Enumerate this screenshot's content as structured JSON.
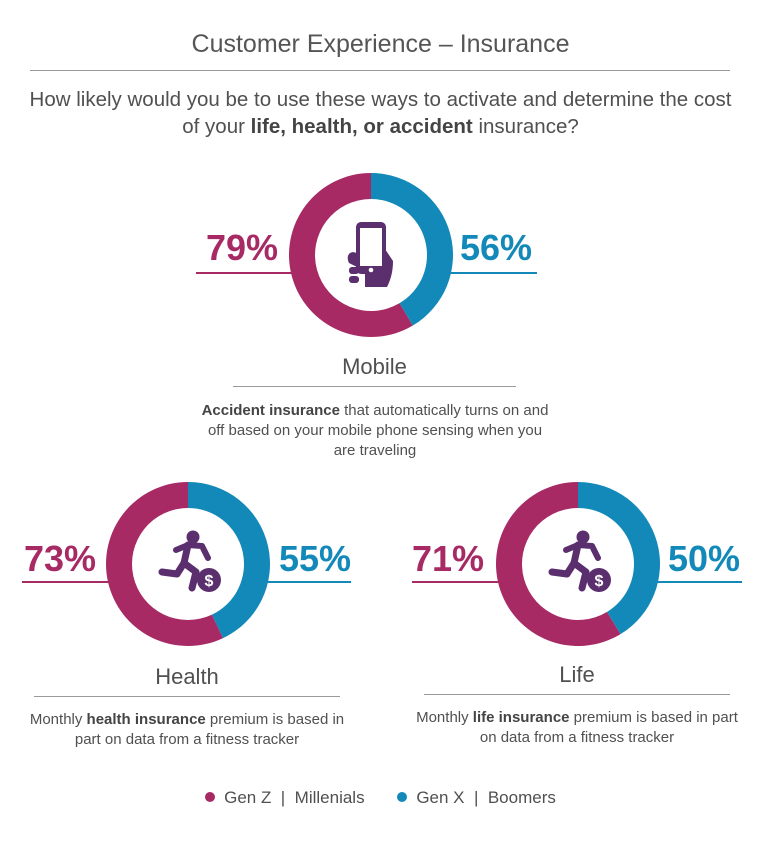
{
  "header": {
    "title": "Customer Experience – Insurance",
    "question_part1": "How likely would you be to use these ways to activate and determine the cost of your ",
    "question_bold": "life, health, or accident",
    "question_part2": " insurance?"
  },
  "colors": {
    "gen_z_millenials": "#a72a65",
    "gen_x_boomers": "#1289b8",
    "icon": "#5b2e6e"
  },
  "chart_data": [
    {
      "type": "pie",
      "name": "Mobile",
      "icon": "smartphone-in-hand-icon",
      "series": [
        {
          "name": "Gen Z | Millenials",
          "value": 79,
          "label": "79%"
        },
        {
          "name": "Gen X | Boomers",
          "value": 56,
          "label": "56%"
        }
      ],
      "description_bold": "Accident insurance",
      "description_rest": " that automatically turns on and off based on your mobile phone sensing when you are traveling"
    },
    {
      "type": "pie",
      "name": "Health",
      "icon": "runner-with-dollar-icon",
      "series": [
        {
          "name": "Gen Z | Millenials",
          "value": 73,
          "label": "73%"
        },
        {
          "name": "Gen X | Boomers",
          "value": 55,
          "label": "55%"
        }
      ],
      "description_pre": "Monthly ",
      "description_bold": "health insurance",
      "description_rest": " premium is based in part on data from a fitness tracker"
    },
    {
      "type": "pie",
      "name": "Life",
      "icon": "runner-with-dollar-icon",
      "series": [
        {
          "name": "Gen Z | Millenials",
          "value": 71,
          "label": "71%"
        },
        {
          "name": "Gen X | Boomers",
          "value": 50,
          "label": "50%"
        }
      ],
      "description_pre": "Monthly ",
      "description_bold": "life insurance",
      "description_rest": " premium is based in part on data from a fitness tracker"
    }
  ],
  "legend": {
    "position": "bottom-center",
    "items": [
      {
        "label": "Gen Z  |  Millenials"
      },
      {
        "label": "Gen X  |  Boomers"
      }
    ]
  }
}
